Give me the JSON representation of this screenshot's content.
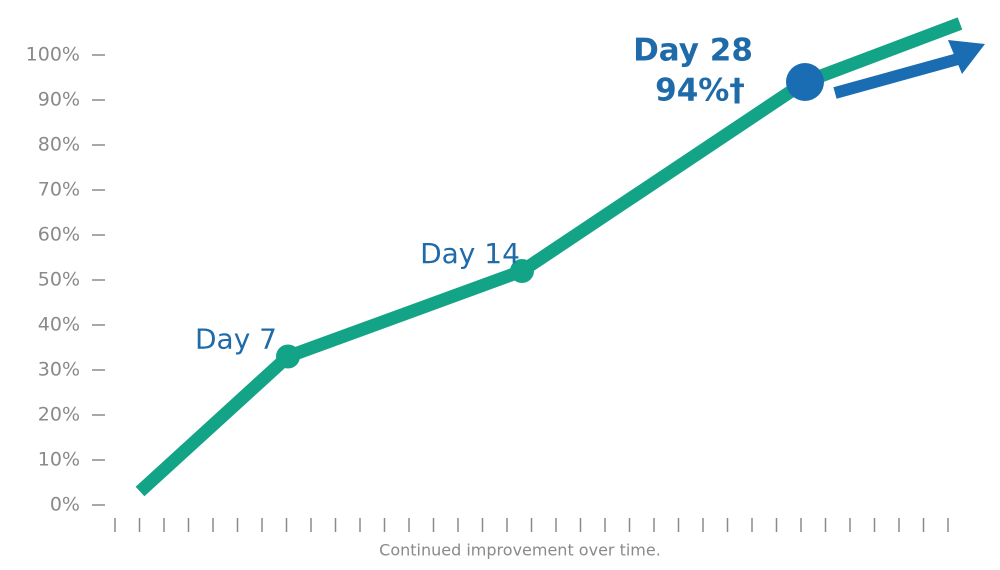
{
  "chart_data": {
    "type": "line",
    "xlabel": "Continued improvement over time.",
    "categories": [
      null,
      "Day 7",
      "Day 14",
      "Day 28",
      null
    ],
    "series": [
      {
        "color": "#13a386",
        "values": [
          3,
          33,
          52,
          94,
          107
        ],
        "value_labels": [
          null,
          null,
          null,
          "94%†",
          null
        ]
      }
    ],
    "highlight_color": "#1a6db3",
    "ylim": [
      0,
      100
    ],
    "yticks": [
      {
        "value": 0,
        "label": "0%"
      },
      {
        "value": 10,
        "label": "10%"
      },
      {
        "value": 20,
        "label": "20%"
      },
      {
        "value": 30,
        "label": "30%"
      },
      {
        "value": 40,
        "label": "40%"
      },
      {
        "value": 50,
        "label": "50%"
      },
      {
        "value": 60,
        "label": "60%"
      },
      {
        "value": 70,
        "label": "70%"
      },
      {
        "value": 80,
        "label": "80%"
      },
      {
        "value": 90,
        "label": "90%"
      },
      {
        "value": 100,
        "label": "100%"
      }
    ]
  }
}
